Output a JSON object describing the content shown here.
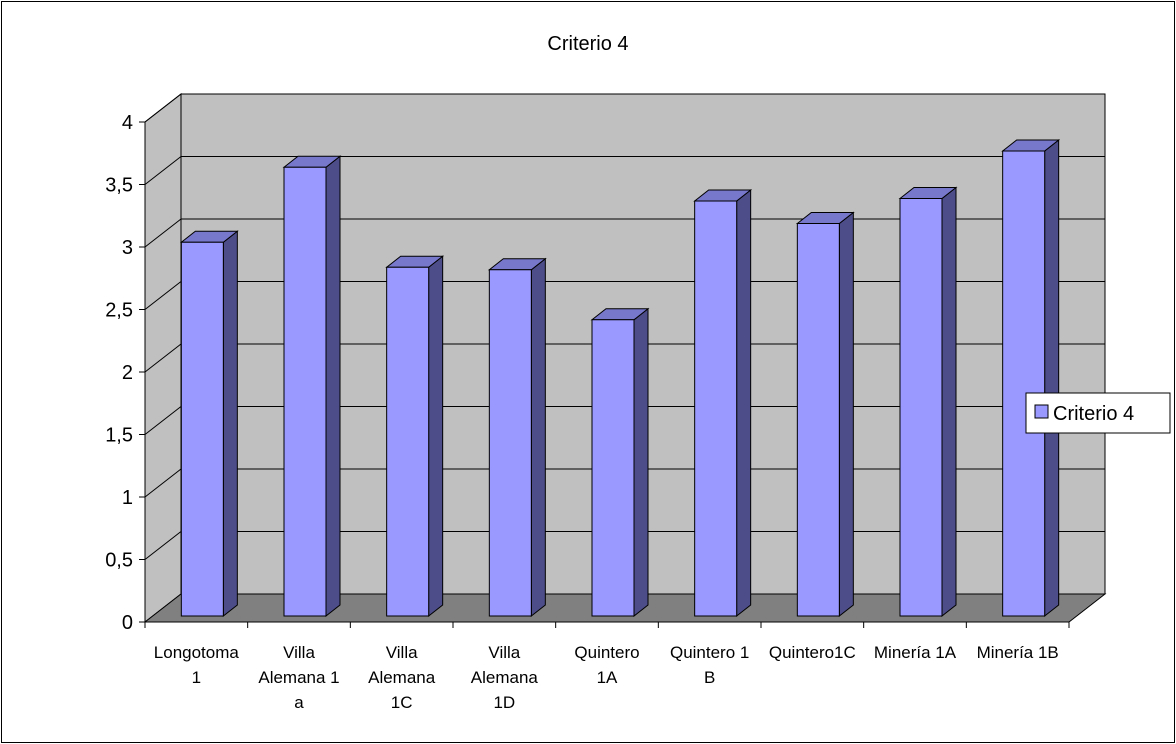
{
  "chart_data": {
    "type": "bar",
    "title": "Criterio 4",
    "categories": [
      "Longotoma 1",
      "Villa Alemana 1 a",
      "Villa Alemana 1C",
      "Villa Alemana 1D",
      "Quintero 1A",
      "Quintero 1 B",
      "Quintero1C",
      "Minería 1A",
      "Minería 1B"
    ],
    "category_label_lines": [
      [
        "Longotoma",
        "1"
      ],
      [
        "Villa",
        "Alemana 1",
        "a"
      ],
      [
        "Villa",
        "Alemana",
        "1C"
      ],
      [
        "Villa",
        "Alemana",
        "1D"
      ],
      [
        "Quintero",
        "1A"
      ],
      [
        "Quintero 1",
        "B"
      ],
      [
        "Quintero1C"
      ],
      [
        "Minería 1A"
      ],
      [
        "Minería 1B"
      ]
    ],
    "series": [
      {
        "name": "Criterio 4",
        "values": [
          2.99,
          3.59,
          2.79,
          2.77,
          2.37,
          3.32,
          3.14,
          3.34,
          3.72
        ]
      }
    ],
    "ylim": [
      0,
      4
    ],
    "yticks": [
      "0",
      "0,5",
      "1",
      "1,5",
      "2",
      "2,5",
      "3",
      "3,5",
      "4"
    ],
    "ytick_values": [
      0,
      0.5,
      1,
      1.5,
      2,
      2.5,
      3,
      3.5,
      4
    ],
    "grid": true,
    "legend_position": "right",
    "style": "3d-column"
  },
  "colors": {
    "bar_front": "#9999ff",
    "bar_side": "#4d4d8a",
    "bar_top": "#7777cc",
    "wall": "#c0c0c0",
    "floor": "#808080",
    "gridline": "#000000"
  }
}
